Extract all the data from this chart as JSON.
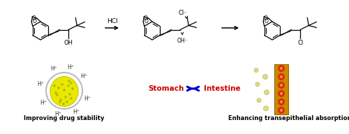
{
  "fig_width": 5.0,
  "fig_height": 1.92,
  "dpi": 100,
  "bg_color": "#ffffff",
  "stomach_label": "Stomach",
  "intestine_label": "Intestine",
  "label_color_red": "#cc0000",
  "arrow_color_blue": "#0000cc",
  "bottom_label1": "Improving drug stability",
  "bottom_label2": "Enhancing transepithelial absorption",
  "h_plus_color": "#333333",
  "nanoemulsion_inner_color": "#e8e800",
  "intestine_wall_color": "#cc8800",
  "intestine_pore_color": "#cc3300"
}
